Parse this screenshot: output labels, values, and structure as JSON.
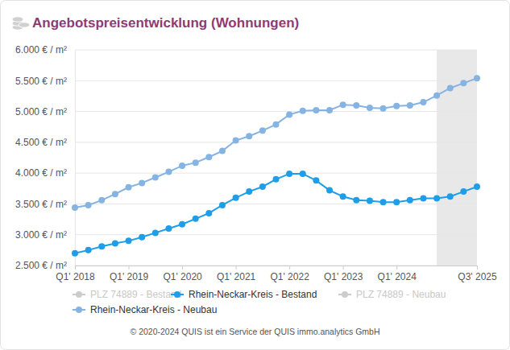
{
  "chart_data": {
    "type": "line",
    "title": "Angebotspreisentwicklung (Wohnungen)",
    "footer": "© 2020-2024 QUIS ist ein Service der QUIS immo.analytics GmbH",
    "categories": [
      "Q1' 2018",
      null,
      null,
      null,
      "Q1' 2019",
      null,
      null,
      null,
      "Q1' 2020",
      null,
      null,
      null,
      "Q1' 2021",
      null,
      null,
      null,
      "Q1' 2022",
      null,
      null,
      null,
      "Q1' 2023",
      null,
      null,
      null,
      "Q1' 2024",
      null,
      null,
      null,
      null,
      null,
      "Q3' 2025"
    ],
    "series": [
      {
        "name": "PLZ 74889 - Bestand",
        "color": "#cccccc",
        "marker": "circle",
        "values": [
          null,
          null,
          null,
          null,
          null,
          null,
          null,
          null,
          null,
          null,
          null,
          null,
          null,
          null,
          null,
          null,
          null,
          null,
          null,
          null,
          null,
          null,
          null,
          null,
          null,
          null,
          null,
          null,
          null,
          null,
          null
        ]
      },
      {
        "name": "Rhein-Neckar-Kreis - Bestand",
        "color": "#1e9ee8",
        "marker": "circle",
        "values": [
          2700,
          2750,
          2810,
          2860,
          2900,
          2960,
          3030,
          3100,
          3170,
          3260,
          3350,
          3480,
          3600,
          3700,
          3780,
          3900,
          3990,
          3990,
          3880,
          3720,
          3620,
          3560,
          3550,
          3530,
          3530,
          3560,
          3590,
          3590,
          3620,
          3700,
          3780
        ]
      },
      {
        "name": "PLZ 74889 - Neubau",
        "color": "#cccccc",
        "marker": "circle",
        "values": [
          null,
          null,
          null,
          null,
          null,
          null,
          null,
          null,
          null,
          null,
          null,
          null,
          null,
          null,
          null,
          null,
          null,
          null,
          null,
          null,
          null,
          null,
          null,
          null,
          null,
          null,
          null,
          null,
          null,
          null,
          null
        ]
      },
      {
        "name": "Rhein-Neckar-Kreis - Neubau",
        "color": "#85b4e3",
        "marker": "circle",
        "values": [
          3440,
          3480,
          3560,
          3660,
          3770,
          3840,
          3930,
          4020,
          4120,
          4170,
          4260,
          4360,
          4530,
          4600,
          4690,
          4790,
          4950,
          5010,
          5020,
          5020,
          5110,
          5100,
          5060,
          5050,
          5090,
          5100,
          5150,
          5260,
          5380,
          5460,
          5540
        ]
      }
    ],
    "shaded_range": [
      27,
      30
    ],
    "ylim": [
      2500,
      6000
    ],
    "yticks": [
      {
        "value": 2500,
        "label": "2.500 € / m²"
      },
      {
        "value": 3000,
        "label": "3.000 € / m²"
      },
      {
        "value": 3500,
        "label": "3.500 € / m²"
      },
      {
        "value": 4000,
        "label": "4.000 € / m²"
      },
      {
        "value": 4500,
        "label": "4.500 € / m²"
      },
      {
        "value": 5000,
        "label": "5.000 € / m²"
      },
      {
        "value": 5500,
        "label": "5.500 € / m²"
      },
      {
        "value": 6000,
        "label": "6.000 € / m²"
      }
    ],
    "grid": true,
    "legend": "bottom"
  }
}
